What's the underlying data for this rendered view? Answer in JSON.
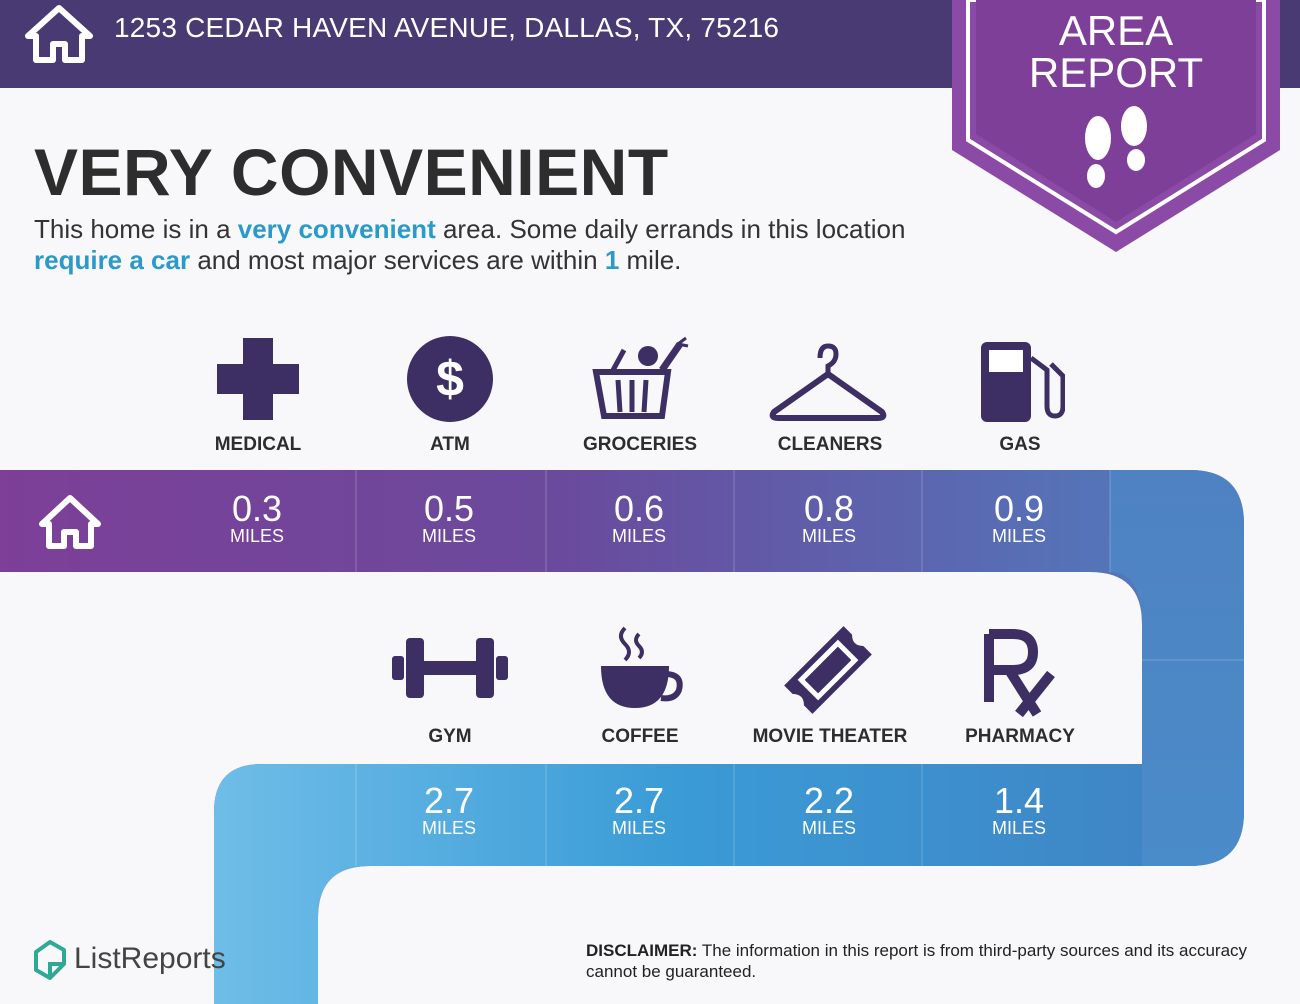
{
  "header": {
    "address": "1253 CEDAR HAVEN AVENUE, DALLAS, TX, 75216",
    "badge_line1": "AREA",
    "badge_line2": "REPORT"
  },
  "headline": "VERY CONVENIENT",
  "summary": {
    "p1": "This home is in a ",
    "h1": "very convenient",
    "p2": " area. Some daily errands in this location ",
    "h2": "require a car",
    "p3": " and most major services are within ",
    "h3": "1",
    "p4": " mile."
  },
  "unit": "MILES",
  "row1": [
    {
      "label": "MEDICAL",
      "miles": "0.3",
      "icon": "medical-cross-icon"
    },
    {
      "label": "ATM",
      "miles": "0.5",
      "icon": "dollar-icon"
    },
    {
      "label": "GROCERIES",
      "miles": "0.6",
      "icon": "grocery-basket-icon"
    },
    {
      "label": "CLEANERS",
      "miles": "0.8",
      "icon": "hanger-icon"
    },
    {
      "label": "GAS",
      "miles": "0.9",
      "icon": "gas-pump-icon"
    }
  ],
  "row2": [
    {
      "label": "GYM",
      "miles": "2.7",
      "icon": "dumbbell-icon"
    },
    {
      "label": "COFFEE",
      "miles": "2.7",
      "icon": "coffee-cup-icon"
    },
    {
      "label": "MOVIE THEATER",
      "miles": "2.2",
      "icon": "ticket-icon"
    },
    {
      "label": "PHARMACY",
      "miles": "1.4",
      "icon": "rx-icon"
    }
  ],
  "colors": {
    "header": "#4a3a74",
    "badge": "#7d3f98",
    "icon": "#3d2f63",
    "accent": "#2a9ac9"
  },
  "footer": {
    "brand": "ListReports",
    "disclaimer_label": "DISCLAIMER:",
    "disclaimer_text": " The information in this report is from third-party sources and its accuracy cannot be guaranteed."
  }
}
